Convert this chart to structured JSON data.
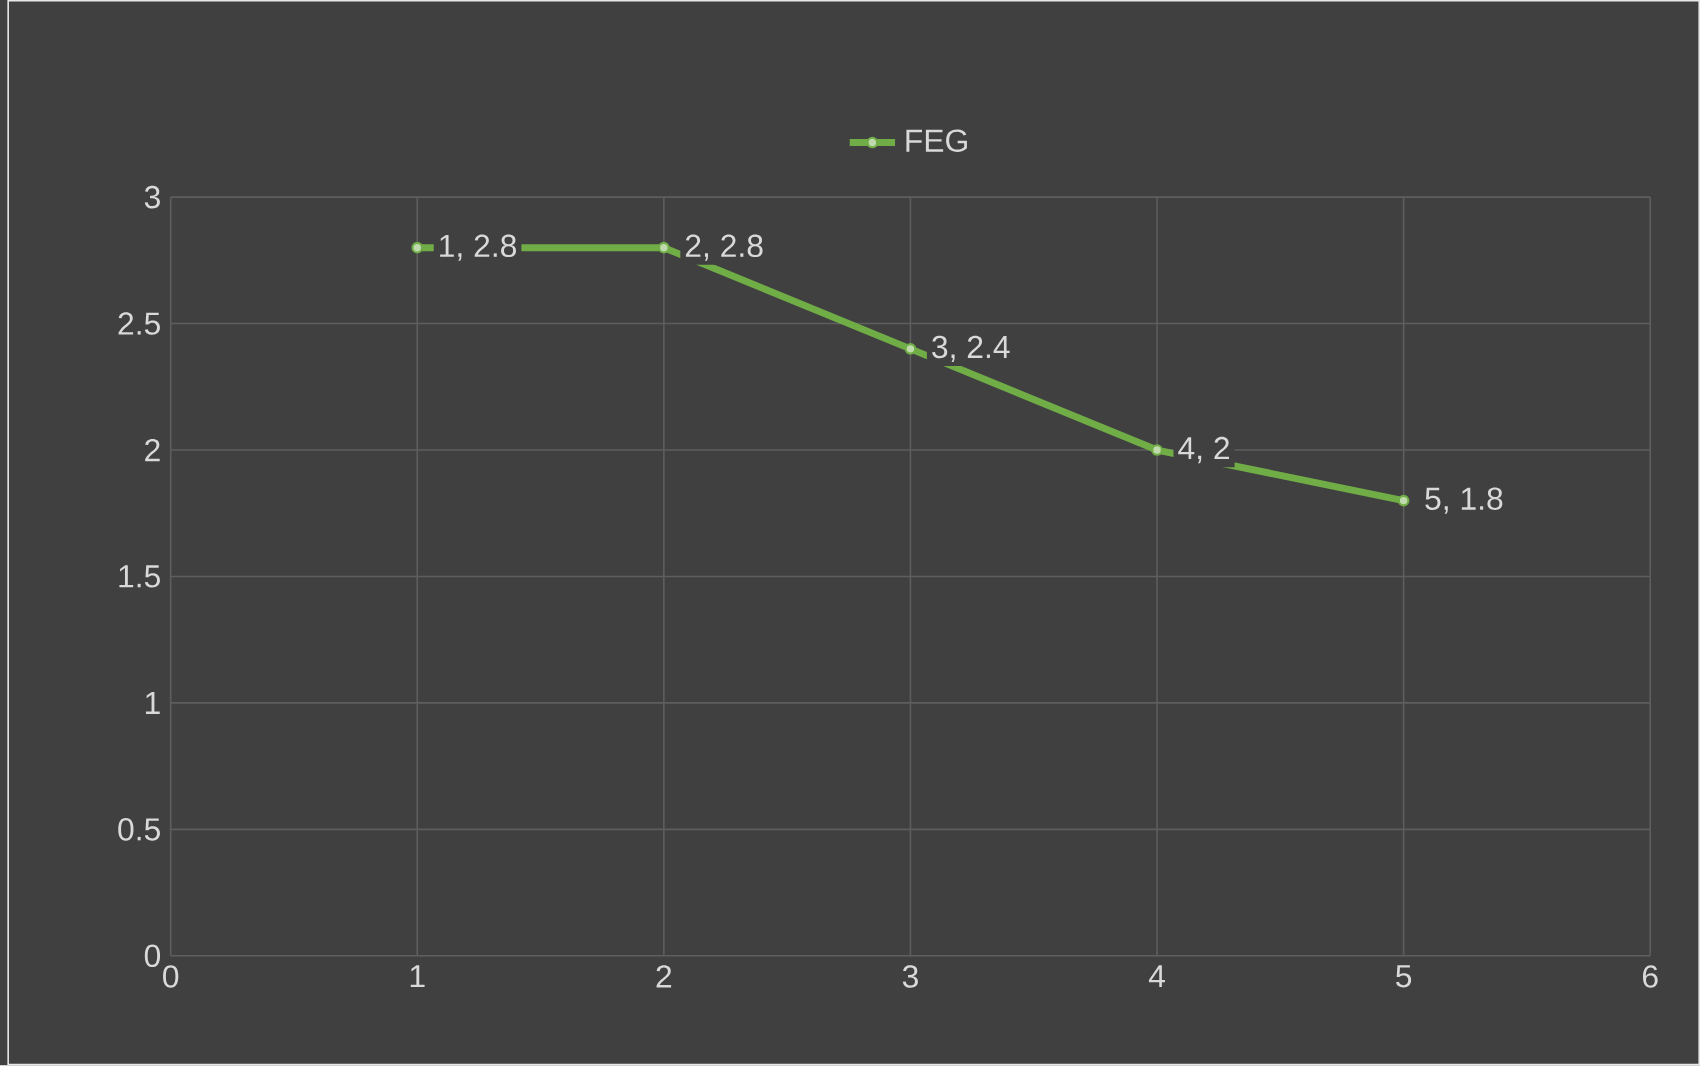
{
  "chart_data": {
    "type": "line",
    "x": [
      1,
      2,
      3,
      4,
      5
    ],
    "series": [
      {
        "name": "FEG",
        "color": "#70ad47",
        "values": [
          2.8,
          2.8,
          2.4,
          2,
          1.8
        ],
        "value_labels": [
          "1, 2.8",
          "2, 2.8",
          "3, 2.4",
          "4, 2",
          "5, 1.8"
        ]
      }
    ],
    "xlim": [
      0,
      6
    ],
    "xticks": [
      0,
      1,
      2,
      3,
      4,
      5,
      6
    ],
    "ylim": [
      0,
      3
    ],
    "yticks": [
      0,
      0.5,
      1,
      1.5,
      2,
      2.5,
      3
    ],
    "grid": true,
    "legend": "top",
    "marker": "circle",
    "line_style": "solid"
  }
}
